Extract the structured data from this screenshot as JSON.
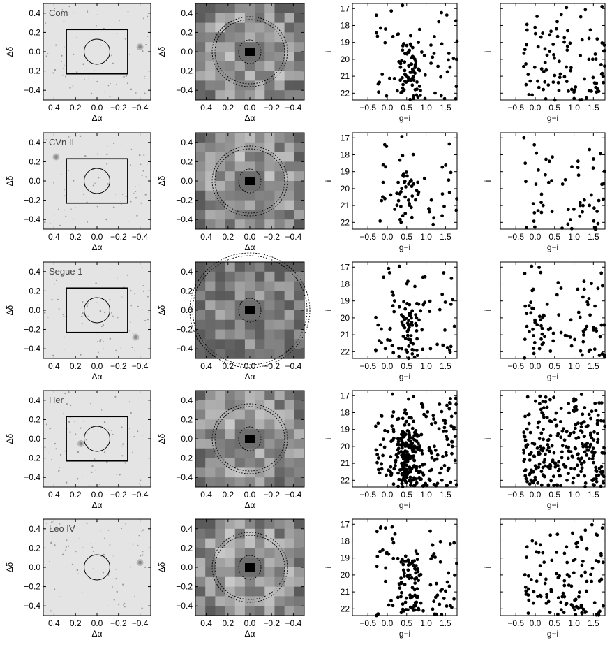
{
  "figure": {
    "rows": [
      {
        "name": "Com",
        "has_box": true
      },
      {
        "name": "CVn II",
        "has_box": true
      },
      {
        "name": "Segue 1",
        "has_box": true
      },
      {
        "name": "Her",
        "has_box": true
      },
      {
        "name": "Leo IV",
        "has_box": false
      }
    ]
  },
  "axes": {
    "map_xlabel": "Δα",
    "map_ylabel": "Δδ",
    "map_xticks": [
      "0.4",
      "0.2",
      "0.0",
      "−0.2",
      "−0.4"
    ],
    "map_yticks": [
      "0.4",
      "0.2",
      "0.0",
      "−0.2",
      "−0.4"
    ],
    "cmd_xlabel": "g−i",
    "cmd_ylabel": "i",
    "cmd_xticks": [
      "−0.5",
      "0.0",
      "0.5",
      "1.0",
      "1.5"
    ],
    "cmd_yticks": [
      "17",
      "18",
      "19",
      "20",
      "21",
      "22"
    ]
  },
  "colors": {
    "points": "#000000",
    "frame": "#000000",
    "image_bg": "#e6e6e6"
  },
  "chart_data": [
    {
      "type": "image",
      "panel": "sky image",
      "rows": [
        "Com",
        "CVn II",
        "Segue 1",
        "Her",
        "Leo IV"
      ],
      "xlabel": "Δα",
      "ylabel": "Δδ",
      "xlim": [
        0.5,
        -0.5
      ],
      "ylim": [
        -0.5,
        0.5
      ]
    },
    {
      "type": "heatmap",
      "panel": "binned density map",
      "rows": [
        "Com",
        "CVn II",
        "Segue 1",
        "Her",
        "Leo IV"
      ],
      "xlabel": "Δα",
      "ylabel": "Δδ",
      "xlim": [
        0.5,
        -0.5
      ],
      "ylim": [
        -0.5,
        0.5
      ]
    },
    {
      "type": "scatter",
      "panel": "colour-magnitude diagram (inner)",
      "rows": [
        "Com",
        "CVn II",
        "Segue 1",
        "Her",
        "Leo IV"
      ],
      "xlabel": "g−i",
      "ylabel": "i",
      "xlim": [
        -0.9,
        1.8
      ],
      "ylim": [
        22.4,
        16.7
      ]
    },
    {
      "type": "scatter",
      "panel": "colour-magnitude diagram (outer)",
      "rows": [
        "Com",
        "CVn II",
        "Segue 1",
        "Her",
        "Leo IV"
      ],
      "xlabel": "g−i",
      "ylabel": "i",
      "xlim": [
        -0.9,
        1.8
      ],
      "ylim": [
        22.4,
        16.7
      ]
    }
  ]
}
